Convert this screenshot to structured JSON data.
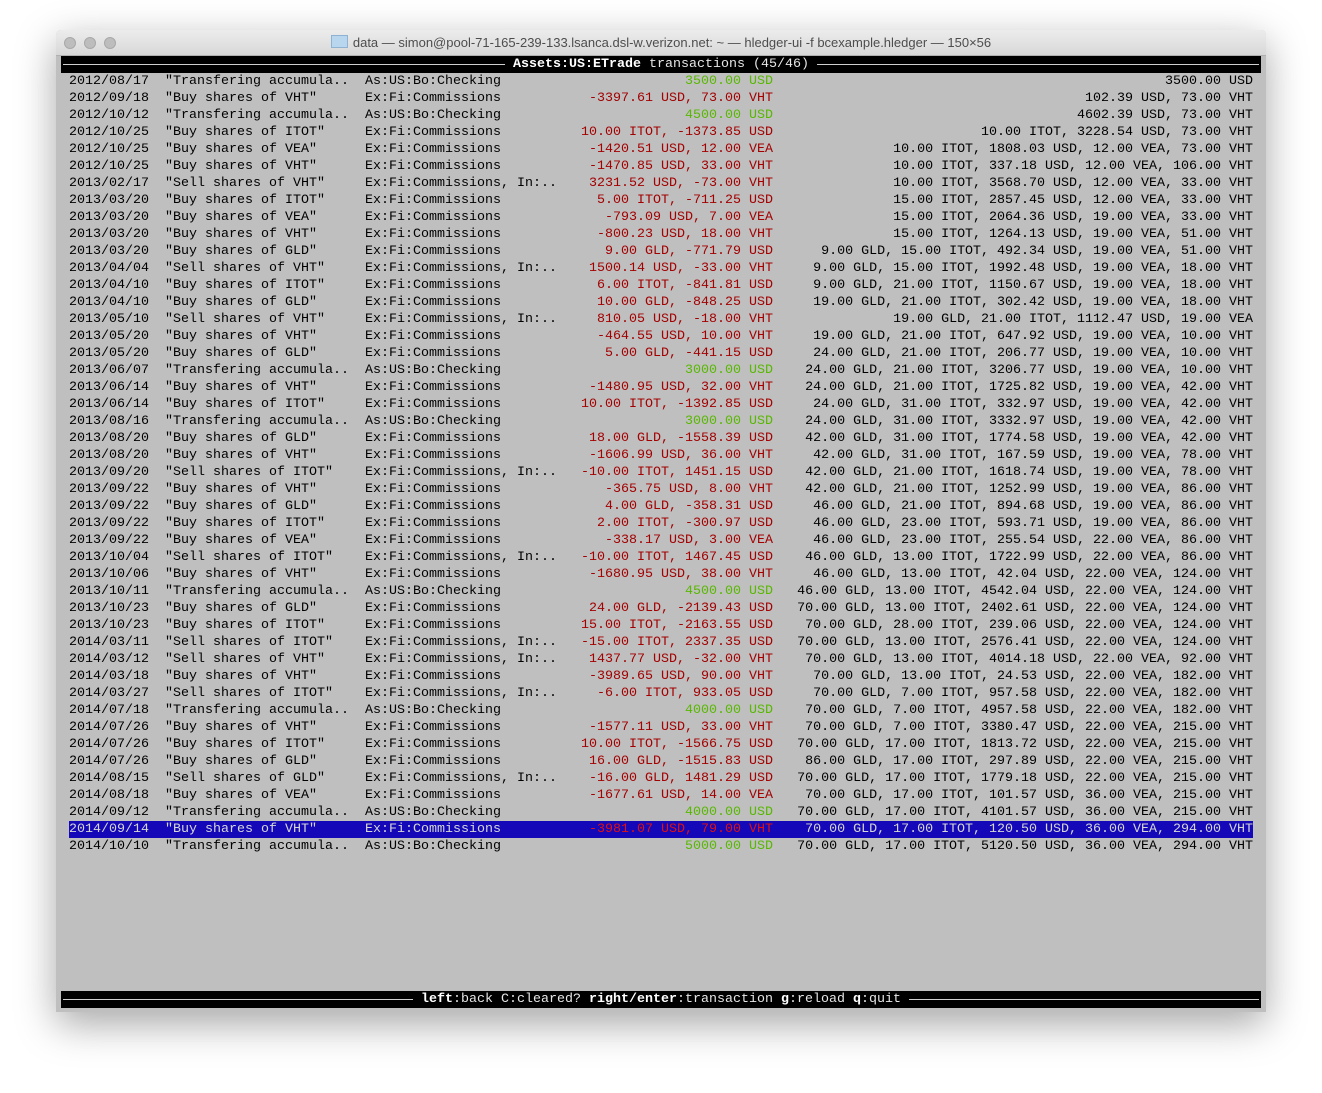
{
  "window": {
    "title": "data — simon@pool-71-165-239-133.lsanca.dsl-w.verizon.net: ~ — hledger-ui -f bcexample.hledger — 150×56"
  },
  "header": {
    "account": "Assets:US:ETrade",
    "suffix": " transactions (45/46)"
  },
  "colors": {
    "negative": "#a30000",
    "positive": "#58b800",
    "selection": "#1408b8"
  },
  "selected_index": 44,
  "rows": [
    {
      "date": "2012/08/17",
      "desc": "\"Transfering accumula..",
      "account": "As:US:Bo:Checking",
      "change": "3500.00 USD",
      "balance": "3500.00 USD",
      "kind": "pos"
    },
    {
      "date": "2012/09/18",
      "desc": "\"Buy shares of VHT\"",
      "account": "Ex:Fi:Commissions",
      "change": "-3397.61 USD, 73.00 VHT",
      "balance": "102.39 USD, 73.00 VHT",
      "kind": "neg"
    },
    {
      "date": "2012/10/12",
      "desc": "\"Transfering accumula..",
      "account": "As:US:Bo:Checking",
      "change": "4500.00 USD",
      "balance": "4602.39 USD, 73.00 VHT",
      "kind": "pos"
    },
    {
      "date": "2012/10/25",
      "desc": "\"Buy shares of ITOT\"",
      "account": "Ex:Fi:Commissions",
      "change": "10.00 ITOT, -1373.85 USD",
      "balance": "10.00 ITOT, 3228.54 USD, 73.00 VHT",
      "kind": "neg"
    },
    {
      "date": "2012/10/25",
      "desc": "\"Buy shares of VEA\"",
      "account": "Ex:Fi:Commissions",
      "change": "-1420.51 USD, 12.00 VEA",
      "balance": "10.00 ITOT, 1808.03 USD, 12.00 VEA, 73.00 VHT",
      "kind": "neg"
    },
    {
      "date": "2012/10/25",
      "desc": "\"Buy shares of VHT\"",
      "account": "Ex:Fi:Commissions",
      "change": "-1470.85 USD, 33.00 VHT",
      "balance": "10.00 ITOT, 337.18 USD, 12.00 VEA, 106.00 VHT",
      "kind": "neg"
    },
    {
      "date": "2013/02/17",
      "desc": "\"Sell shares of VHT\"",
      "account": "Ex:Fi:Commissions, In:..",
      "change": "3231.52 USD, -73.00 VHT",
      "balance": "10.00 ITOT, 3568.70 USD, 12.00 VEA, 33.00 VHT",
      "kind": "neg"
    },
    {
      "date": "2013/03/20",
      "desc": "\"Buy shares of ITOT\"",
      "account": "Ex:Fi:Commissions",
      "change": "5.00 ITOT, -711.25 USD",
      "balance": "15.00 ITOT, 2857.45 USD, 12.00 VEA, 33.00 VHT",
      "kind": "neg"
    },
    {
      "date": "2013/03/20",
      "desc": "\"Buy shares of VEA\"",
      "account": "Ex:Fi:Commissions",
      "change": "-793.09 USD, 7.00 VEA",
      "balance": "15.00 ITOT, 2064.36 USD, 19.00 VEA, 33.00 VHT",
      "kind": "neg"
    },
    {
      "date": "2013/03/20",
      "desc": "\"Buy shares of VHT\"",
      "account": "Ex:Fi:Commissions",
      "change": "-800.23 USD, 18.00 VHT",
      "balance": "15.00 ITOT, 1264.13 USD, 19.00 VEA, 51.00 VHT",
      "kind": "neg"
    },
    {
      "date": "2013/03/20",
      "desc": "\"Buy shares of GLD\"",
      "account": "Ex:Fi:Commissions",
      "change": "9.00 GLD, -771.79 USD",
      "balance": "9.00 GLD, 15.00 ITOT, 492.34 USD, 19.00 VEA, 51.00 VHT",
      "kind": "neg"
    },
    {
      "date": "2013/04/04",
      "desc": "\"Sell shares of VHT\"",
      "account": "Ex:Fi:Commissions, In:..",
      "change": "1500.14 USD, -33.00 VHT",
      "balance": "9.00 GLD, 15.00 ITOT, 1992.48 USD, 19.00 VEA, 18.00 VHT",
      "kind": "neg"
    },
    {
      "date": "2013/04/10",
      "desc": "\"Buy shares of ITOT\"",
      "account": "Ex:Fi:Commissions",
      "change": "6.00 ITOT, -841.81 USD",
      "balance": "9.00 GLD, 21.00 ITOT, 1150.67 USD, 19.00 VEA, 18.00 VHT",
      "kind": "neg"
    },
    {
      "date": "2013/04/10",
      "desc": "\"Buy shares of GLD\"",
      "account": "Ex:Fi:Commissions",
      "change": "10.00 GLD, -848.25 USD",
      "balance": "19.00 GLD, 21.00 ITOT, 302.42 USD, 19.00 VEA, 18.00 VHT",
      "kind": "neg"
    },
    {
      "date": "2013/05/10",
      "desc": "\"Sell shares of VHT\"",
      "account": "Ex:Fi:Commissions, In:..",
      "change": "810.05 USD, -18.00 VHT",
      "balance": "19.00 GLD, 21.00 ITOT, 1112.47 USD, 19.00 VEA",
      "kind": "neg"
    },
    {
      "date": "2013/05/20",
      "desc": "\"Buy shares of VHT\"",
      "account": "Ex:Fi:Commissions",
      "change": "-464.55 USD, 10.00 VHT",
      "balance": "19.00 GLD, 21.00 ITOT, 647.92 USD, 19.00 VEA, 10.00 VHT",
      "kind": "neg"
    },
    {
      "date": "2013/05/20",
      "desc": "\"Buy shares of GLD\"",
      "account": "Ex:Fi:Commissions",
      "change": "5.00 GLD, -441.15 USD",
      "balance": "24.00 GLD, 21.00 ITOT, 206.77 USD, 19.00 VEA, 10.00 VHT",
      "kind": "neg"
    },
    {
      "date": "2013/06/07",
      "desc": "\"Transfering accumula..",
      "account": "As:US:Bo:Checking",
      "change": "3000.00 USD",
      "balance": "24.00 GLD, 21.00 ITOT, 3206.77 USD, 19.00 VEA, 10.00 VHT",
      "kind": "pos"
    },
    {
      "date": "2013/06/14",
      "desc": "\"Buy shares of VHT\"",
      "account": "Ex:Fi:Commissions",
      "change": "-1480.95 USD, 32.00 VHT",
      "balance": "24.00 GLD, 21.00 ITOT, 1725.82 USD, 19.00 VEA, 42.00 VHT",
      "kind": "neg"
    },
    {
      "date": "2013/06/14",
      "desc": "\"Buy shares of ITOT\"",
      "account": "Ex:Fi:Commissions",
      "change": "10.00 ITOT, -1392.85 USD",
      "balance": "24.00 GLD, 31.00 ITOT, 332.97 USD, 19.00 VEA, 42.00 VHT",
      "kind": "neg"
    },
    {
      "date": "2013/08/16",
      "desc": "\"Transfering accumula..",
      "account": "As:US:Bo:Checking",
      "change": "3000.00 USD",
      "balance": "24.00 GLD, 31.00 ITOT, 3332.97 USD, 19.00 VEA, 42.00 VHT",
      "kind": "pos"
    },
    {
      "date": "2013/08/20",
      "desc": "\"Buy shares of GLD\"",
      "account": "Ex:Fi:Commissions",
      "change": "18.00 GLD, -1558.39 USD",
      "balance": "42.00 GLD, 31.00 ITOT, 1774.58 USD, 19.00 VEA, 42.00 VHT",
      "kind": "neg"
    },
    {
      "date": "2013/08/20",
      "desc": "\"Buy shares of VHT\"",
      "account": "Ex:Fi:Commissions",
      "change": "-1606.99 USD, 36.00 VHT",
      "balance": "42.00 GLD, 31.00 ITOT, 167.59 USD, 19.00 VEA, 78.00 VHT",
      "kind": "neg"
    },
    {
      "date": "2013/09/20",
      "desc": "\"Sell shares of ITOT\"",
      "account": "Ex:Fi:Commissions, In:..",
      "change": "-10.00 ITOT, 1451.15 USD",
      "balance": "42.00 GLD, 21.00 ITOT, 1618.74 USD, 19.00 VEA, 78.00 VHT",
      "kind": "neg"
    },
    {
      "date": "2013/09/22",
      "desc": "\"Buy shares of VHT\"",
      "account": "Ex:Fi:Commissions",
      "change": "-365.75 USD, 8.00 VHT",
      "balance": "42.00 GLD, 21.00 ITOT, 1252.99 USD, 19.00 VEA, 86.00 VHT",
      "kind": "neg"
    },
    {
      "date": "2013/09/22",
      "desc": "\"Buy shares of GLD\"",
      "account": "Ex:Fi:Commissions",
      "change": "4.00 GLD, -358.31 USD",
      "balance": "46.00 GLD, 21.00 ITOT, 894.68 USD, 19.00 VEA, 86.00 VHT",
      "kind": "neg"
    },
    {
      "date": "2013/09/22",
      "desc": "\"Buy shares of ITOT\"",
      "account": "Ex:Fi:Commissions",
      "change": "2.00 ITOT, -300.97 USD",
      "balance": "46.00 GLD, 23.00 ITOT, 593.71 USD, 19.00 VEA, 86.00 VHT",
      "kind": "neg"
    },
    {
      "date": "2013/09/22",
      "desc": "\"Buy shares of VEA\"",
      "account": "Ex:Fi:Commissions",
      "change": "-338.17 USD, 3.00 VEA",
      "balance": "46.00 GLD, 23.00 ITOT, 255.54 USD, 22.00 VEA, 86.00 VHT",
      "kind": "neg"
    },
    {
      "date": "2013/10/04",
      "desc": "\"Sell shares of ITOT\"",
      "account": "Ex:Fi:Commissions, In:..",
      "change": "-10.00 ITOT, 1467.45 USD",
      "balance": "46.00 GLD, 13.00 ITOT, 1722.99 USD, 22.00 VEA, 86.00 VHT",
      "kind": "neg"
    },
    {
      "date": "2013/10/06",
      "desc": "\"Buy shares of VHT\"",
      "account": "Ex:Fi:Commissions",
      "change": "-1680.95 USD, 38.00 VHT",
      "balance": "46.00 GLD, 13.00 ITOT, 42.04 USD, 22.00 VEA, 124.00 VHT",
      "kind": "neg"
    },
    {
      "date": "2013/10/11",
      "desc": "\"Transfering accumula..",
      "account": "As:US:Bo:Checking",
      "change": "4500.00 USD",
      "balance": "46.00 GLD, 13.00 ITOT, 4542.04 USD, 22.00 VEA, 124.00 VHT",
      "kind": "pos"
    },
    {
      "date": "2013/10/23",
      "desc": "\"Buy shares of GLD\"",
      "account": "Ex:Fi:Commissions",
      "change": "24.00 GLD, -2139.43 USD",
      "balance": "70.00 GLD, 13.00 ITOT, 2402.61 USD, 22.00 VEA, 124.00 VHT",
      "kind": "neg"
    },
    {
      "date": "2013/10/23",
      "desc": "\"Buy shares of ITOT\"",
      "account": "Ex:Fi:Commissions",
      "change": "15.00 ITOT, -2163.55 USD",
      "balance": "70.00 GLD, 28.00 ITOT, 239.06 USD, 22.00 VEA, 124.00 VHT",
      "kind": "neg"
    },
    {
      "date": "2014/03/11",
      "desc": "\"Sell shares of ITOT\"",
      "account": "Ex:Fi:Commissions, In:..",
      "change": "-15.00 ITOT, 2337.35 USD",
      "balance": "70.00 GLD, 13.00 ITOT, 2576.41 USD, 22.00 VEA, 124.00 VHT",
      "kind": "neg"
    },
    {
      "date": "2014/03/12",
      "desc": "\"Sell shares of VHT\"",
      "account": "Ex:Fi:Commissions, In:..",
      "change": "1437.77 USD, -32.00 VHT",
      "balance": "70.00 GLD, 13.00 ITOT, 4014.18 USD, 22.00 VEA, 92.00 VHT",
      "kind": "neg"
    },
    {
      "date": "2014/03/18",
      "desc": "\"Buy shares of VHT\"",
      "account": "Ex:Fi:Commissions",
      "change": "-3989.65 USD, 90.00 VHT",
      "balance": "70.00 GLD, 13.00 ITOT, 24.53 USD, 22.00 VEA, 182.00 VHT",
      "kind": "neg"
    },
    {
      "date": "2014/03/27",
      "desc": "\"Sell shares of ITOT\"",
      "account": "Ex:Fi:Commissions, In:..",
      "change": "-6.00 ITOT, 933.05 USD",
      "balance": "70.00 GLD, 7.00 ITOT, 957.58 USD, 22.00 VEA, 182.00 VHT",
      "kind": "neg"
    },
    {
      "date": "2014/07/18",
      "desc": "\"Transfering accumula..",
      "account": "As:US:Bo:Checking",
      "change": "4000.00 USD",
      "balance": "70.00 GLD, 7.00 ITOT, 4957.58 USD, 22.00 VEA, 182.00 VHT",
      "kind": "pos"
    },
    {
      "date": "2014/07/26",
      "desc": "\"Buy shares of VHT\"",
      "account": "Ex:Fi:Commissions",
      "change": "-1577.11 USD, 33.00 VHT",
      "balance": "70.00 GLD, 7.00 ITOT, 3380.47 USD, 22.00 VEA, 215.00 VHT",
      "kind": "neg"
    },
    {
      "date": "2014/07/26",
      "desc": "\"Buy shares of ITOT\"",
      "account": "Ex:Fi:Commissions",
      "change": "10.00 ITOT, -1566.75 USD",
      "balance": "70.00 GLD, 17.00 ITOT, 1813.72 USD, 22.00 VEA, 215.00 VHT",
      "kind": "neg"
    },
    {
      "date": "2014/07/26",
      "desc": "\"Buy shares of GLD\"",
      "account": "Ex:Fi:Commissions",
      "change": "16.00 GLD, -1515.83 USD",
      "balance": "86.00 GLD, 17.00 ITOT, 297.89 USD, 22.00 VEA, 215.00 VHT",
      "kind": "neg"
    },
    {
      "date": "2014/08/15",
      "desc": "\"Sell shares of GLD\"",
      "account": "Ex:Fi:Commissions, In:..",
      "change": "-16.00 GLD, 1481.29 USD",
      "balance": "70.00 GLD, 17.00 ITOT, 1779.18 USD, 22.00 VEA, 215.00 VHT",
      "kind": "neg"
    },
    {
      "date": "2014/08/18",
      "desc": "\"Buy shares of VEA\"",
      "account": "Ex:Fi:Commissions",
      "change": "-1677.61 USD, 14.00 VEA",
      "balance": "70.00 GLD, 17.00 ITOT, 101.57 USD, 36.00 VEA, 215.00 VHT",
      "kind": "neg"
    },
    {
      "date": "2014/09/12",
      "desc": "\"Transfering accumula..",
      "account": "As:US:Bo:Checking",
      "change": "4000.00 USD",
      "balance": "70.00 GLD, 17.00 ITOT, 4101.57 USD, 36.00 VEA, 215.00 VHT",
      "kind": "pos"
    },
    {
      "date": "2014/09/14",
      "desc": "\"Buy shares of VHT\"",
      "account": "Ex:Fi:Commissions",
      "change": "-3981.07 USD, 79.00 VHT",
      "balance": "70.00 GLD, 17.00 ITOT, 120.50 USD, 36.00 VEA, 294.00 VHT",
      "kind": "neg"
    },
    {
      "date": "2014/10/10",
      "desc": "\"Transfering accumula..",
      "account": "As:US:Bo:Checking",
      "change": "5000.00 USD",
      "balance": "70.00 GLD, 17.00 ITOT, 5120.50 USD, 36.00 VEA, 294.00 VHT",
      "kind": "pos"
    }
  ],
  "footer": {
    "keys": [
      {
        "key": "left",
        "action": "back",
        "bold": true
      },
      {
        "key": "C",
        "action": "cleared?",
        "bold": false
      },
      {
        "key": "right/enter",
        "action": "transaction",
        "bold": true
      },
      {
        "key": "g",
        "action": "reload",
        "bold": true
      },
      {
        "key": "q",
        "action": "quit",
        "bold": true
      }
    ]
  }
}
